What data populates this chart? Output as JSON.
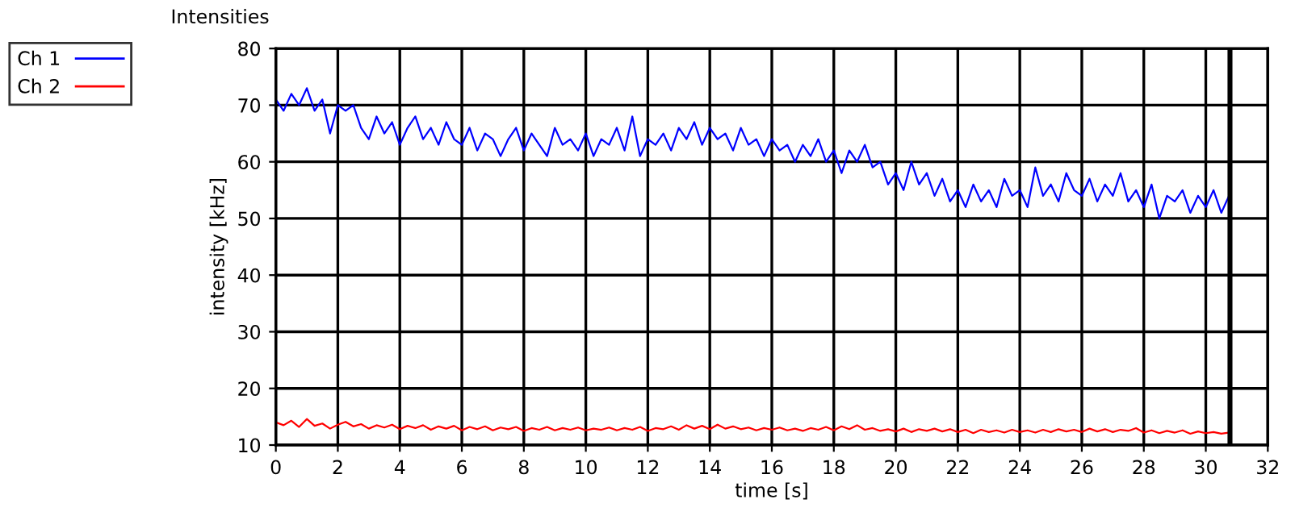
{
  "chart_data": {
    "type": "line",
    "title": "Intensities",
    "xlabel": "time [s]",
    "ylabel": "intensity [kHz]",
    "xlim": [
      0,
      32
    ],
    "xticks": [
      0,
      2,
      4,
      6,
      8,
      10,
      12,
      14,
      16,
      18,
      20,
      22,
      24,
      26,
      28,
      30,
      32
    ],
    "ylim": [
      10,
      80
    ],
    "yticks": [
      10,
      20,
      30,
      40,
      50,
      60,
      70,
      80
    ],
    "grid": true,
    "legend": "top left",
    "marker": "none",
    "line_style": "solid",
    "ref_lines": [
      {
        "axis": "x",
        "value": 30.78,
        "label": null,
        "color": "#000000"
      }
    ],
    "x": [
      0,
      0.25,
      0.5,
      0.75,
      1,
      1.25,
      1.5,
      1.75,
      2,
      2.25,
      2.5,
      2.75,
      3,
      3.25,
      3.5,
      3.75,
      4,
      4.25,
      4.5,
      4.75,
      5,
      5.25,
      5.5,
      5.75,
      6,
      6.25,
      6.5,
      6.75,
      7,
      7.25,
      7.5,
      7.75,
      8,
      8.25,
      8.5,
      8.75,
      9,
      9.25,
      9.5,
      9.75,
      10,
      10.25,
      10.5,
      10.75,
      11,
      11.25,
      11.5,
      11.75,
      12,
      12.25,
      12.5,
      12.75,
      13,
      13.25,
      13.5,
      13.75,
      14,
      14.25,
      14.5,
      14.75,
      15,
      15.25,
      15.5,
      15.75,
      16,
      16.25,
      16.5,
      16.75,
      17,
      17.25,
      17.5,
      17.75,
      18,
      18.25,
      18.5,
      18.75,
      19,
      19.25,
      19.5,
      19.75,
      20,
      20.25,
      20.5,
      20.75,
      21,
      21.25,
      21.5,
      21.75,
      22,
      22.25,
      22.5,
      22.75,
      23,
      23.25,
      23.5,
      23.75,
      24,
      24.25,
      24.5,
      24.75,
      25,
      25.25,
      25.5,
      25.75,
      26,
      26.25,
      26.5,
      26.75,
      27,
      27.25,
      27.5,
      27.75,
      28,
      28.25,
      28.5,
      28.75,
      29,
      29.25,
      29.5,
      29.75,
      30,
      30.25,
      30.5,
      30.75
    ],
    "series": [
      {
        "name": "Ch 1",
        "color": "#0000ff",
        "values": [
          71,
          69,
          72,
          70,
          73,
          69,
          71,
          65,
          70,
          69,
          70,
          66,
          64,
          68,
          65,
          67,
          63,
          66,
          68,
          64,
          66,
          63,
          67,
          64,
          63,
          66,
          62,
          65,
          64,
          61,
          64,
          66,
          62,
          65,
          63,
          61,
          66,
          63,
          64,
          62,
          65,
          61,
          64,
          63,
          66,
          62,
          68,
          61,
          64,
          63,
          65,
          62,
          66,
          64,
          67,
          63,
          66,
          64,
          65,
          62,
          66,
          63,
          64,
          61,
          64,
          62,
          63,
          60,
          63,
          61,
          64,
          60,
          62,
          58,
          62,
          60,
          63,
          59,
          60,
          56,
          58,
          55,
          60,
          56,
          58,
          54,
          57,
          53,
          55,
          52,
          56,
          53,
          55,
          52,
          57,
          54,
          55,
          52,
          59,
          54,
          56,
          53,
          58,
          55,
          54,
          57,
          53,
          56,
          54,
          58,
          53,
          55,
          52,
          56,
          50,
          54,
          53,
          55,
          51,
          54,
          52,
          55,
          51,
          54
        ]
      },
      {
        "name": "Ch 2",
        "color": "#ff0000",
        "values": [
          14,
          13.5,
          14.3,
          13.2,
          14.6,
          13.4,
          13.8,
          12.9,
          13.6,
          14.1,
          13.3,
          13.7,
          12.9,
          13.5,
          13.1,
          13.6,
          12.8,
          13.4,
          13,
          13.5,
          12.7,
          13.3,
          12.9,
          13.4,
          12.6,
          13.2,
          12.8,
          13.3,
          12.6,
          13.1,
          12.8,
          13.2,
          12.5,
          13,
          12.7,
          13.2,
          12.6,
          13,
          12.7,
          13.1,
          12.6,
          12.9,
          12.7,
          13.1,
          12.6,
          13,
          12.7,
          13.2,
          12.5,
          13,
          12.8,
          13.3,
          12.7,
          13.5,
          12.9,
          13.4,
          12.8,
          13.6,
          12.9,
          13.3,
          12.8,
          13.1,
          12.6,
          13,
          12.7,
          13.1,
          12.6,
          12.9,
          12.5,
          13,
          12.7,
          13.2,
          12.6,
          13.3,
          12.8,
          13.5,
          12.7,
          13,
          12.5,
          12.8,
          12.4,
          12.9,
          12.3,
          12.8,
          12.5,
          12.9,
          12.4,
          12.8,
          12.3,
          12.7,
          12.1,
          12.7,
          12.3,
          12.6,
          12.2,
          12.7,
          12.3,
          12.6,
          12.2,
          12.7,
          12.3,
          12.8,
          12.4,
          12.7,
          12.3,
          12.9,
          12.4,
          12.8,
          12.3,
          12.7,
          12.5,
          13,
          12.2,
          12.6,
          12.1,
          12.5,
          12.2,
          12.6,
          12,
          12.4,
          12.1,
          12.3,
          12,
          12.2
        ]
      }
    ]
  }
}
